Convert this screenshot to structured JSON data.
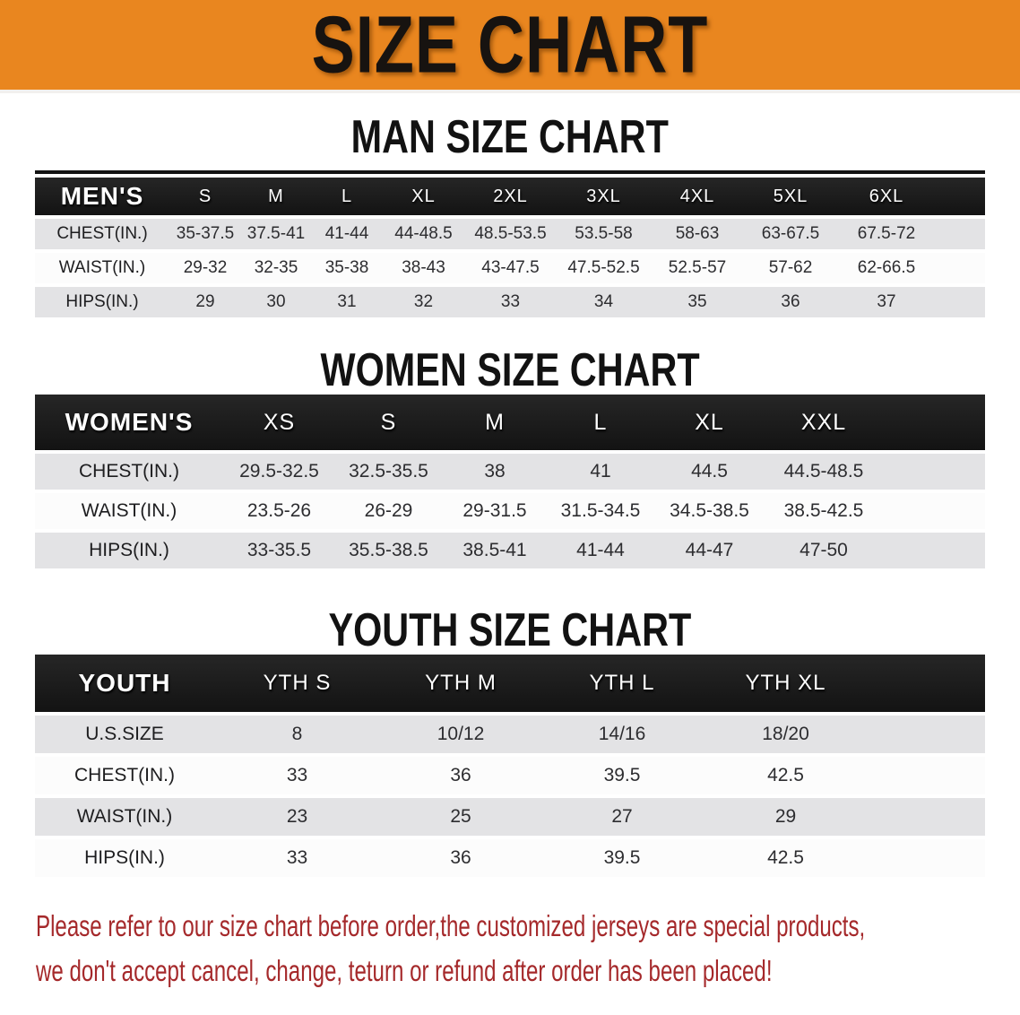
{
  "banner": {
    "title": "SIZE CHART",
    "bg_color": "#E9861F"
  },
  "men": {
    "heading": "MAN SIZE CHART",
    "corner": "MEN'S",
    "sizes": [
      "S",
      "M",
      "L",
      "XL",
      "2XL",
      "3XL",
      "4XL",
      "5XL",
      "6XL"
    ],
    "rows": [
      {
        "label": "CHEST(IN.)",
        "values": [
          "35-37.5",
          "37.5-41",
          "41-44",
          "44-48.5",
          "48.5-53.5",
          "53.5-58",
          "58-63",
          "63-67.5",
          "67.5-72"
        ]
      },
      {
        "label": "WAIST(IN.)",
        "values": [
          "29-32",
          "32-35",
          "35-38",
          "38-43",
          "43-47.5",
          "47.5-52.5",
          "52.5-57",
          "57-62",
          "62-66.5"
        ]
      },
      {
        "label": "HIPS(IN.)",
        "values": [
          "29",
          "30",
          "31",
          "32",
          "33",
          "34",
          "35",
          "36",
          "37"
        ]
      }
    ]
  },
  "women": {
    "heading": "WOMEN SIZE CHART",
    "corner": "WOMEN'S",
    "sizes": [
      "XS",
      "S",
      "M",
      "L",
      "XL",
      "XXL"
    ],
    "rows": [
      {
        "label": "CHEST(IN.)",
        "values": [
          "29.5-32.5",
          "32.5-35.5",
          "38",
          "41",
          "44.5",
          "44.5-48.5"
        ]
      },
      {
        "label": "WAIST(IN.)",
        "values": [
          "23.5-26",
          "26-29",
          "29-31.5",
          "31.5-34.5",
          "34.5-38.5",
          "38.5-42.5"
        ]
      },
      {
        "label": "HIPS(IN.)",
        "values": [
          "33-35.5",
          "35.5-38.5",
          "38.5-41",
          "41-44",
          "44-47",
          "47-50"
        ]
      }
    ]
  },
  "youth": {
    "heading": "YOUTH SIZE CHART",
    "corner": "YOUTH",
    "sizes": [
      "YTH S",
      "YTH M",
      "YTH L",
      "YTH XL"
    ],
    "rows": [
      {
        "label": "U.S.SIZE",
        "values": [
          "8",
          "10/12",
          "14/16",
          "18/20"
        ]
      },
      {
        "label": "CHEST(IN.)",
        "values": [
          "33",
          "36",
          "39.5",
          "42.5"
        ]
      },
      {
        "label": "WAIST(IN.)",
        "values": [
          "23",
          "25",
          "27",
          "29"
        ]
      },
      {
        "label": "HIPS(IN.)",
        "values": [
          "33",
          "36",
          "39.5",
          "42.5"
        ]
      }
    ]
  },
  "disclaimer": {
    "line1": "Please refer to our size chart before order,the customized jerseys are special products,",
    "line2": "we don't accept cancel, change, teturn or refund after order has been placed!",
    "text_color": "#A5292B"
  }
}
